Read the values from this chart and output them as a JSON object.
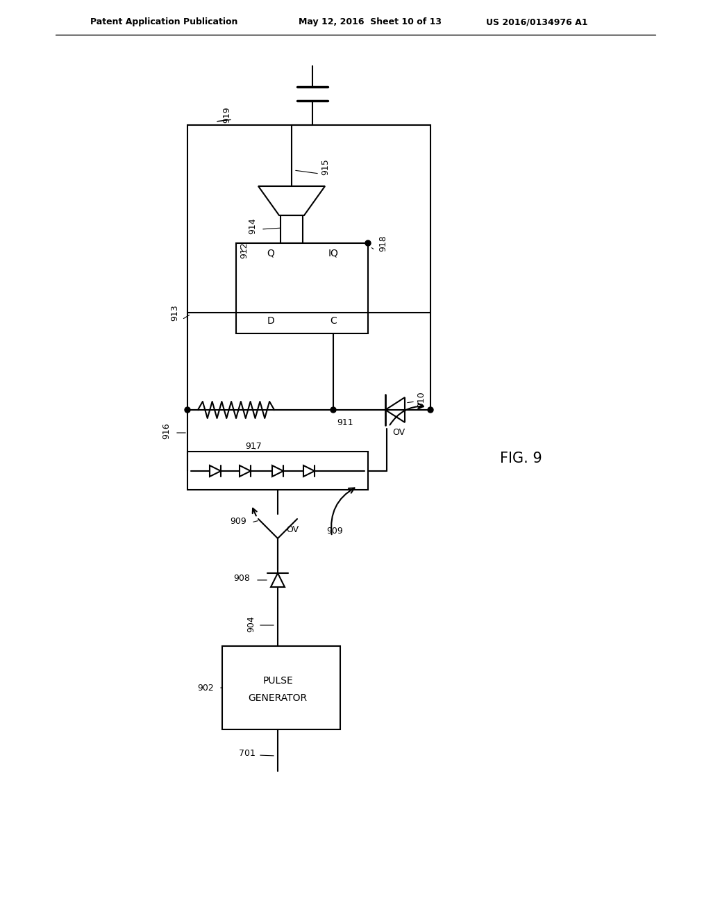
{
  "title_left": "Patent Application Publication",
  "title_mid": "May 12, 2016  Sheet 10 of 13",
  "title_right": "US 2016/0134976 A1",
  "fig_label": "FIG. 9",
  "background": "#ffffff",
  "line_color": "#000000",
  "lw": 1.5
}
